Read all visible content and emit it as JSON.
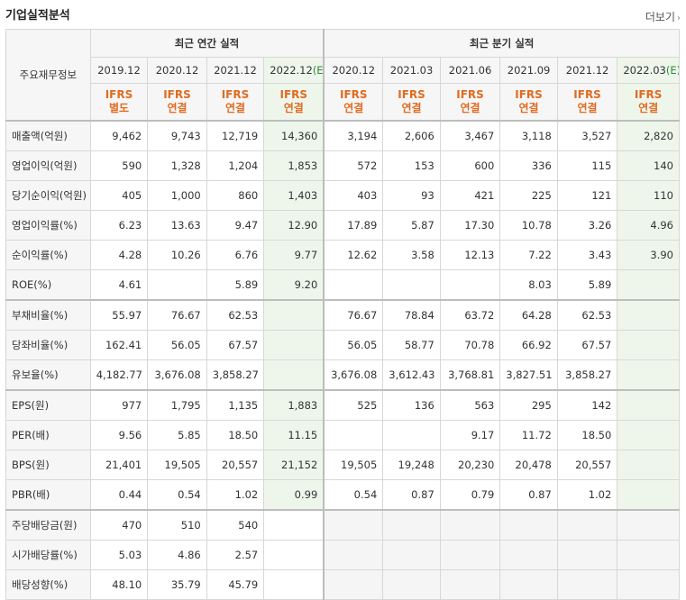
{
  "header": {
    "title": "기업실적분석",
    "more_label": "더보기"
  },
  "table": {
    "row_header_label": "주요재무정보",
    "group_annual": "최근 연간 실적",
    "group_quarter": "최근 분기 실적",
    "annual_periods": [
      "2019.12",
      "2020.12",
      "2021.12",
      "2022.12"
    ],
    "quarter_periods": [
      "2020.12",
      "2021.03",
      "2021.06",
      "2021.09",
      "2021.12",
      "2022.03"
    ],
    "estimate_tag": "(E)",
    "annual_methods": [
      [
        "IFRS",
        "별도"
      ],
      [
        "IFRS",
        "연결"
      ],
      [
        "IFRS",
        "연결"
      ],
      [
        "IFRS",
        "연결"
      ]
    ],
    "quarter_methods": [
      [
        "IFRS",
        "연결"
      ],
      [
        "IFRS",
        "연결"
      ],
      [
        "IFRS",
        "연결"
      ],
      [
        "IFRS",
        "연결"
      ],
      [
        "IFRS",
        "연결"
      ],
      [
        "IFRS",
        "연결"
      ]
    ],
    "rows": [
      {
        "label": "매출액(억원)",
        "values": [
          "9,462",
          "9,743",
          "12,719",
          "14,360",
          "3,194",
          "2,606",
          "3,467",
          "3,118",
          "3,527",
          "2,820"
        ]
      },
      {
        "label": "영업이익(억원)",
        "values": [
          "590",
          "1,328",
          "1,204",
          "1,853",
          "572",
          "153",
          "600",
          "336",
          "115",
          "140"
        ]
      },
      {
        "label": "당기순이익(억원)",
        "values": [
          "405",
          "1,000",
          "860",
          "1,403",
          "403",
          "93",
          "421",
          "225",
          "121",
          "110"
        ]
      },
      {
        "label": "영업이익률(%)",
        "values": [
          "6.23",
          "13.63",
          "9.47",
          "12.90",
          "17.89",
          "5.87",
          "17.30",
          "10.78",
          "3.26",
          "4.96"
        ]
      },
      {
        "label": "순이익률(%)",
        "values": [
          "4.28",
          "10.26",
          "6.76",
          "9.77",
          "12.62",
          "3.58",
          "12.13",
          "7.22",
          "3.43",
          "3.90"
        ]
      },
      {
        "label": "ROE(%)",
        "values": [
          "4.61",
          "",
          "5.89",
          "9.20",
          "",
          "",
          "",
          "8.03",
          "5.89",
          ""
        ]
      },
      {
        "label": "부채비율(%)",
        "values": [
          "55.97",
          "76.67",
          "62.53",
          "",
          "76.67",
          "78.84",
          "63.72",
          "64.28",
          "62.53",
          ""
        ]
      },
      {
        "label": "당좌비율(%)",
        "values": [
          "162.41",
          "56.05",
          "67.57",
          "",
          "56.05",
          "58.77",
          "70.78",
          "66.92",
          "67.57",
          ""
        ]
      },
      {
        "label": "유보율(%)",
        "values": [
          "4,182.77",
          "3,676.08",
          "3,858.27",
          "",
          "3,676.08",
          "3,612.43",
          "3,768.81",
          "3,827.51",
          "3,858.27",
          ""
        ]
      },
      {
        "label": "EPS(원)",
        "values": [
          "977",
          "1,795",
          "1,135",
          "1,883",
          "525",
          "136",
          "563",
          "295",
          "142",
          ""
        ]
      },
      {
        "label": "PER(배)",
        "values": [
          "9.56",
          "5.85",
          "18.50",
          "11.15",
          "",
          "",
          "9.17",
          "11.72",
          "18.50",
          ""
        ]
      },
      {
        "label": "BPS(원)",
        "values": [
          "21,401",
          "19,505",
          "20,557",
          "21,152",
          "19,505",
          "19,248",
          "20,230",
          "20,478",
          "20,557",
          ""
        ]
      },
      {
        "label": "PBR(배)",
        "values": [
          "0.44",
          "0.54",
          "1.02",
          "0.99",
          "0.54",
          "0.87",
          "0.79",
          "0.87",
          "1.02",
          ""
        ]
      },
      {
        "label": "주당배당금(원)",
        "values": [
          "470",
          "510",
          "540",
          "",
          "",
          "",
          "",
          "",
          "",
          ""
        ]
      },
      {
        "label": "시가배당률(%)",
        "values": [
          "5.03",
          "4.86",
          "2.57",
          "",
          "",
          "",
          "",
          "",
          "",
          ""
        ]
      },
      {
        "label": "배당성향(%)",
        "values": [
          "48.10",
          "35.79",
          "45.79",
          "",
          "",
          "",
          "",
          "",
          "",
          ""
        ]
      }
    ]
  },
  "colors": {
    "method_text": "#e06b20",
    "estimate_bg": "#eef6ec",
    "estimate_tag": "#2f8b3a"
  }
}
